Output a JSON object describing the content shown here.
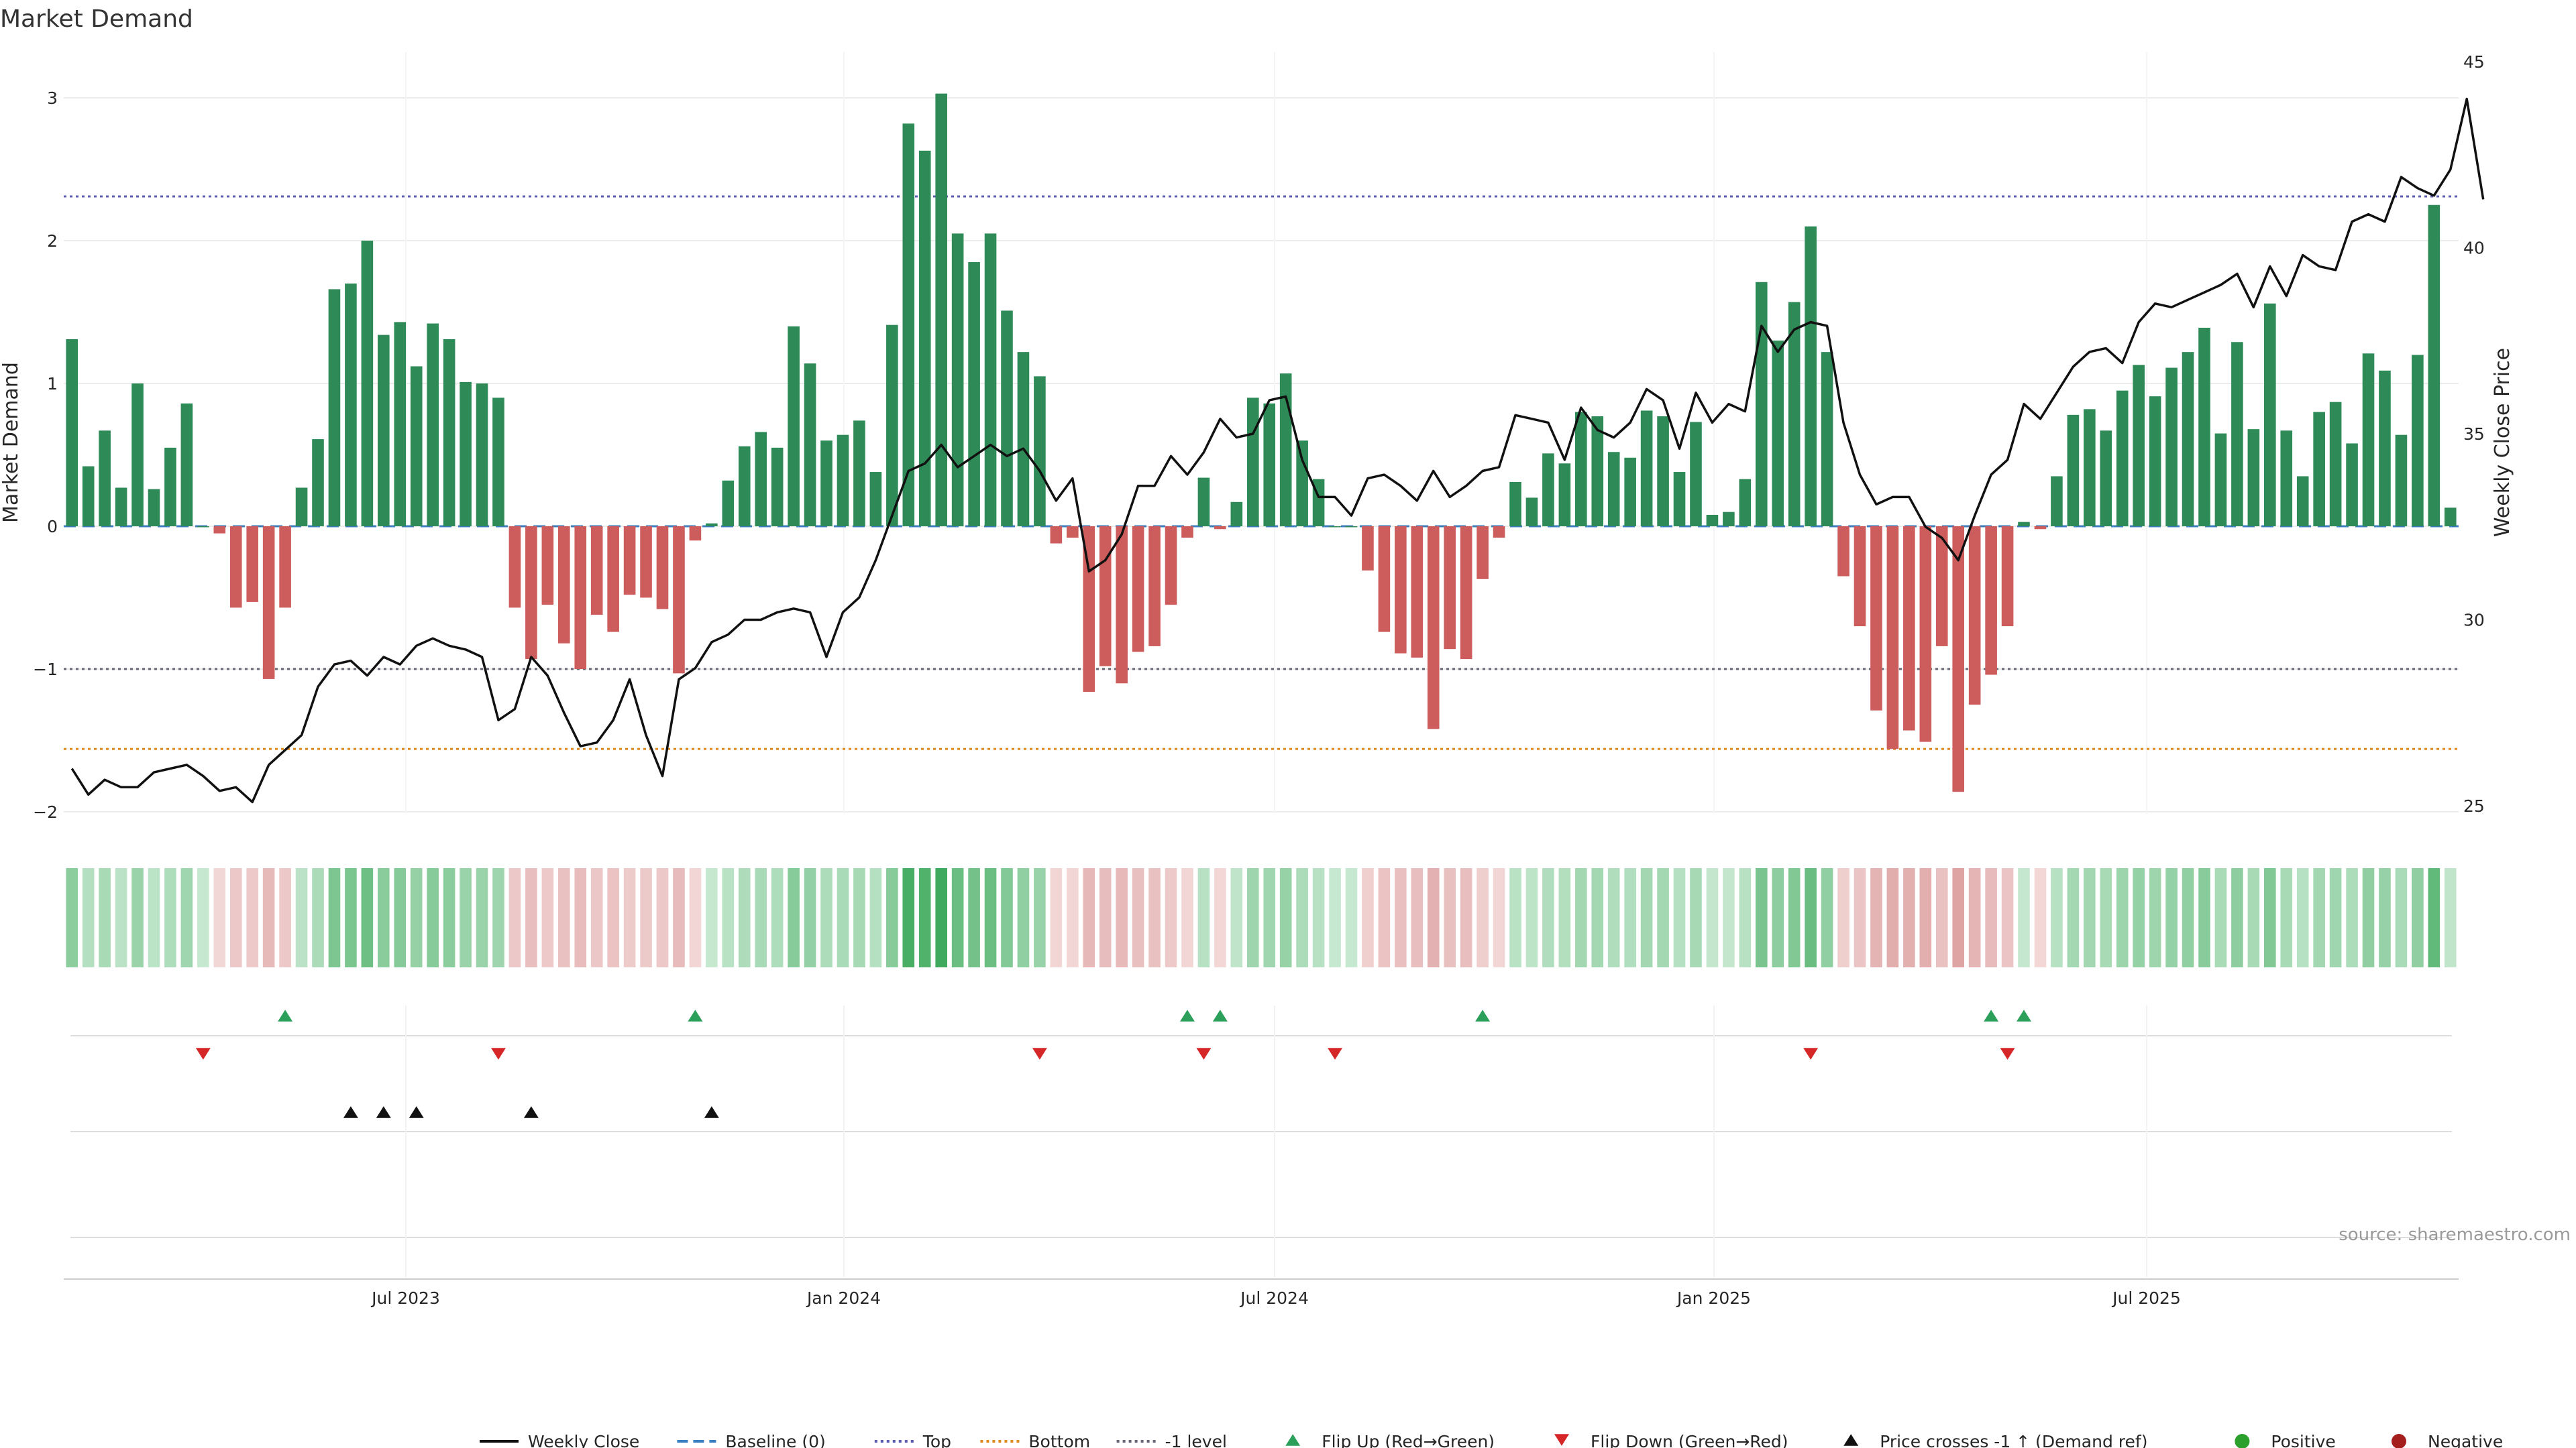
{
  "chart_data": {
    "type": "bar",
    "title": "Market Demand",
    "ylabel": "Market Demand",
    "y2label": "Weekly Close Price",
    "ylim": [
      -2,
      3.35
    ],
    "y2lim": [
      25,
      45
    ],
    "yticks": [
      "3",
      "2",
      "1",
      "0",
      "−1",
      "−2"
    ],
    "y2ticks": [
      "45",
      "40",
      "35",
      "30",
      "25"
    ],
    "xticks": [
      "Jul 2023",
      "Jan 2024",
      "Jul 2024",
      "Jan 2025",
      "Jul 2025"
    ],
    "reference_lines": {
      "top": 2.31,
      "minus1": -1.0,
      "bottom": -1.56,
      "baseline": 0
    },
    "demand": [
      1.31,
      0.42,
      0.67,
      0.27,
      1.0,
      0.26,
      0.55,
      0.86,
      0.0,
      -0.05,
      -0.57,
      -0.53,
      -1.07,
      -0.57,
      0.27,
      0.61,
      1.66,
      1.7,
      2.0,
      1.34,
      1.43,
      1.12,
      1.42,
      1.31,
      1.01,
      1.0,
      0.9,
      -0.57,
      -0.93,
      -0.55,
      -0.82,
      -1.0,
      -0.62,
      -0.74,
      -0.48,
      -0.5,
      -0.58,
      -1.03,
      -0.1,
      0.02,
      0.32,
      0.56,
      0.66,
      0.55,
      1.4,
      1.14,
      0.6,
      0.64,
      0.74,
      0.38,
      1.41,
      2.82,
      2.63,
      3.03,
      2.05,
      1.85,
      2.05,
      1.51,
      1.22,
      1.05,
      -0.12,
      -0.08,
      -1.16,
      -0.98,
      -1.1,
      -0.88,
      -0.84,
      -0.55,
      -0.08,
      0.34,
      -0.02,
      0.17,
      0.9,
      0.86,
      1.07,
      0.6,
      0.33,
      0.0,
      0.0,
      -0.31,
      -0.74,
      -0.89,
      -0.92,
      -1.42,
      -0.86,
      -0.93,
      -0.37,
      -0.08,
      0.31,
      0.2,
      0.51,
      0.44,
      0.8,
      0.77,
      0.52,
      0.48,
      0.81,
      0.77,
      0.38,
      0.73,
      0.08,
      0.1,
      0.33,
      1.71,
      1.3,
      1.57,
      2.1,
      1.22,
      -0.35,
      -0.7,
      -1.29,
      -1.56,
      -1.43,
      -1.51,
      -0.84,
      -1.86,
      -1.25,
      -1.04,
      -0.7,
      0.03,
      -0.02,
      0.35,
      0.78,
      0.82,
      0.67,
      0.95,
      1.13,
      0.91,
      1.11,
      1.22,
      1.39,
      0.65,
      1.29,
      0.68,
      1.56,
      0.67,
      0.35,
      0.8,
      0.87,
      0.58,
      1.21,
      1.09,
      0.64,
      1.2,
      2.25,
      0.13
    ],
    "weekly_close": [
      26.0,
      25.3,
      25.7,
      25.5,
      25.5,
      25.9,
      26.0,
      26.1,
      25.8,
      25.4,
      25.5,
      25.1,
      26.1,
      26.5,
      26.9,
      28.2,
      28.8,
      28.9,
      28.5,
      29.0,
      28.8,
      29.3,
      29.5,
      29.3,
      29.2,
      29.0,
      27.3,
      27.6,
      29.0,
      28.5,
      27.5,
      26.6,
      26.7,
      27.3,
      28.4,
      26.9,
      25.8,
      28.4,
      28.7,
      29.4,
      29.6,
      30.0,
      30.0,
      30.2,
      30.3,
      30.2,
      29.0,
      30.2,
      30.6,
      31.6,
      32.8,
      34.0,
      34.2,
      34.7,
      34.1,
      34.4,
      34.7,
      34.4,
      34.6,
      34.0,
      33.2,
      33.8,
      31.3,
      31.6,
      32.3,
      33.6,
      33.6,
      34.4,
      33.9,
      34.5,
      35.4,
      34.9,
      35.0,
      35.9,
      36.0,
      34.3,
      33.3,
      33.3,
      32.8,
      33.8,
      33.9,
      33.6,
      33.2,
      34.0,
      33.3,
      33.6,
      34.0,
      34.1,
      35.5,
      35.4,
      35.3,
      34.3,
      35.7,
      35.1,
      34.9,
      35.3,
      36.2,
      35.9,
      34.6,
      36.1,
      35.3,
      35.8,
      35.6,
      37.9,
      37.2,
      37.8,
      38.0,
      37.9,
      35.3,
      33.9,
      33.1,
      33.3,
      33.3,
      32.5,
      32.2,
      31.6,
      32.8,
      33.9,
      34.3,
      35.8,
      35.4,
      36.1,
      36.8,
      37.2,
      37.3,
      36.9,
      38.0,
      38.5,
      38.4,
      38.6,
      38.8,
      39.0,
      39.3,
      38.4,
      39.5,
      38.7,
      39.8,
      39.5,
      39.4,
      40.7,
      40.9,
      40.7,
      41.9,
      41.6,
      41.4,
      42.1,
      44.0,
      41.3
    ],
    "flip_up_index": [
      13,
      38,
      68,
      70,
      86,
      117,
      119
    ],
    "flip_down_index": [
      8,
      26,
      59,
      69,
      77,
      106,
      118
    ],
    "price_cross_index": [
      17,
      19,
      21,
      28,
      39
    ],
    "legend": [
      {
        "label": "Weekly Close",
        "kind": "line",
        "color": "#111111"
      },
      {
        "label": "Baseline (0)",
        "kind": "dash",
        "color": "#3b7fc0"
      },
      {
        "label": "Top",
        "kind": "dot",
        "color": "#5c5cb0"
      },
      {
        "label": "Bottom",
        "kind": "dot",
        "color": "#e08a1e"
      },
      {
        "label": "-1 level",
        "kind": "dot",
        "color": "#666677"
      },
      {
        "label": "Flip Up (Red→Green)",
        "kind": "tri-up",
        "color": "#2ca05a"
      },
      {
        "label": "Flip Down (Green→Red)",
        "kind": "tri-down",
        "color": "#d62728"
      },
      {
        "label": "Price crosses -1 ↑ (Demand ref)",
        "kind": "tri-up",
        "color": "#111111"
      },
      {
        "label": "Positive",
        "kind": "dot-marker",
        "color": "#2ca02c"
      },
      {
        "label": "Negative",
        "kind": "dot-marker",
        "color": "#a51e1e"
      }
    ],
    "source": "source: sharemaestro.com"
  },
  "colors": {
    "positive_bar": "#2e8b57",
    "negative_bar": "#cd5c5c",
    "price_line": "#111111",
    "top_line": "#5c5cb0",
    "bottom_line": "#e08a1e",
    "minus1_line": "#666677",
    "baseline": "#3b7fc0",
    "grid": "#ececec"
  }
}
